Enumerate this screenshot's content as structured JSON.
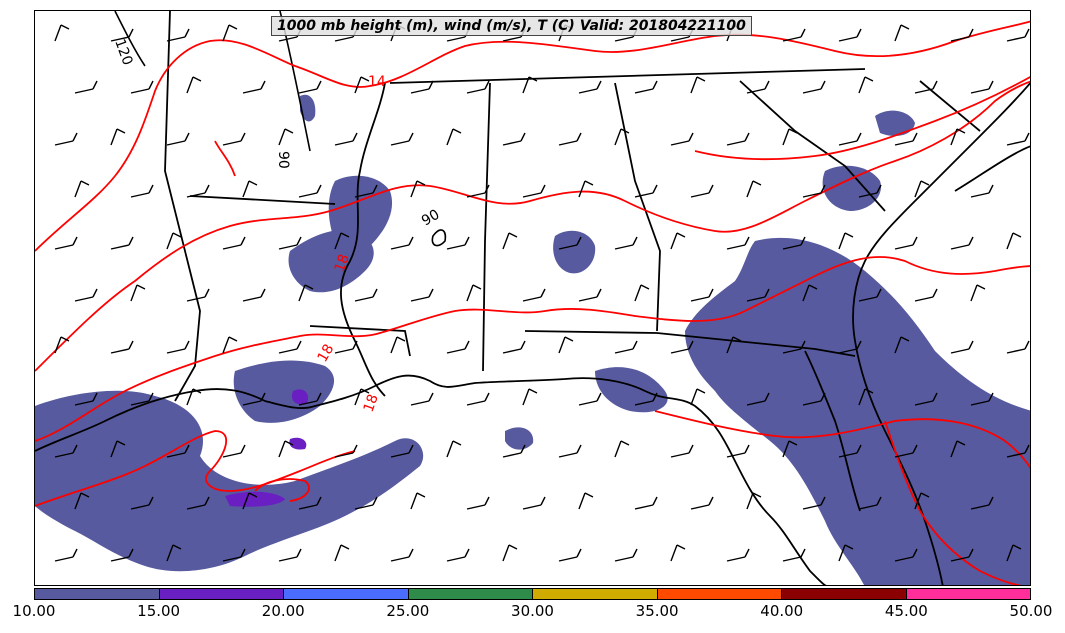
{
  "title": "1000 mb height (m), wind (m/s), T (C) Valid: 201804221100",
  "colorbar": {
    "labels": [
      "10.00",
      "15.00",
      "20.00",
      "25.00",
      "30.00",
      "35.00",
      "40.00",
      "45.00",
      "50.00"
    ],
    "colors": [
      "#575a9e",
      "#6a1fc2",
      "#4a6cff",
      "#2e8b4a",
      "#d0ac00",
      "#ff4a00",
      "#8b0000",
      "#ff2e9a"
    ]
  },
  "contour_labels": {
    "height": [
      "120",
      "90",
      "90"
    ],
    "temperature": [
      "14",
      "18",
      "18",
      "18"
    ]
  },
  "styles": {
    "coastline_color": "#000000",
    "temperature_contour_color": "#ff0000",
    "wind_barb_color": "#000000",
    "precip_fill_color": "#575a9e"
  },
  "icons": {
    "wind_barb": "wind-barb-icon"
  }
}
